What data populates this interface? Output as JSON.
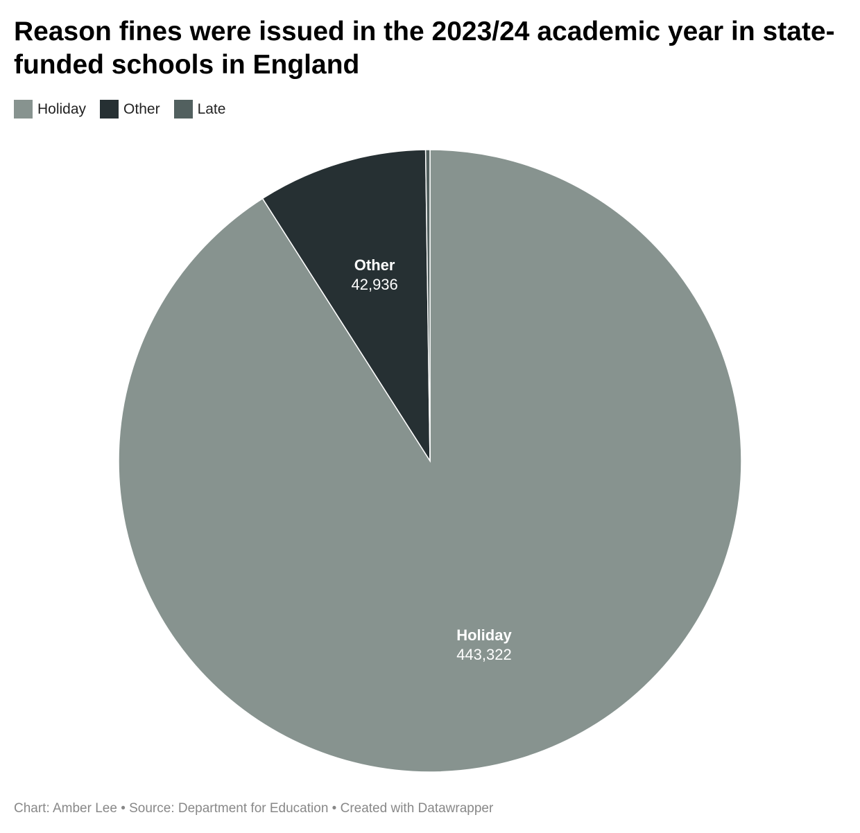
{
  "chart_data": {
    "type": "pie",
    "title": "Reason fines were issued in the 2023/24 academic year in state-funded schools in England",
    "categories": [
      "Holiday",
      "Other",
      "Late"
    ],
    "values": [
      443322,
      42936,
      1100
    ],
    "value_labels": [
      "443,322",
      "42,936",
      null
    ],
    "colors": [
      "#87938f",
      "#263033",
      "#52605f"
    ],
    "source": "Chart: Amber Lee • Source: Department for Education • Created with Datawrapper"
  }
}
